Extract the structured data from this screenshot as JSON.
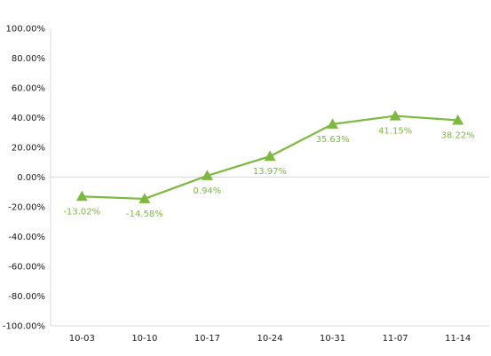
{
  "chart_data": {
    "type": "line",
    "title": "",
    "xlabel": "",
    "ylabel": "",
    "categories": [
      "10-03",
      "10-10",
      "10-17",
      "10-24",
      "10-31",
      "11-07",
      "11-14"
    ],
    "series": [
      {
        "values": [
          -13.02,
          -14.58,
          0.94,
          13.97,
          35.63,
          41.15,
          38.22
        ],
        "labels": [
          "-13.02%",
          "-14.58%",
          "0.94%",
          "13.97%",
          "35.63%",
          "41.15%",
          "38.22%"
        ],
        "color": "#7cba3f",
        "marker": "triangle"
      }
    ],
    "ylim": [
      -100,
      100
    ],
    "yticks": [
      100,
      80,
      60,
      40,
      20,
      0,
      -20,
      -40,
      -60,
      -80,
      -100
    ],
    "ytick_labels": [
      "100.00%",
      "80.00%",
      "60.00%",
      "40.00%",
      "20.00%",
      "0.00%",
      "-20.00%",
      "-40.00%",
      "-60.00%",
      "-80.00%",
      "-100.00%"
    ],
    "grid": false,
    "legend": "none"
  }
}
